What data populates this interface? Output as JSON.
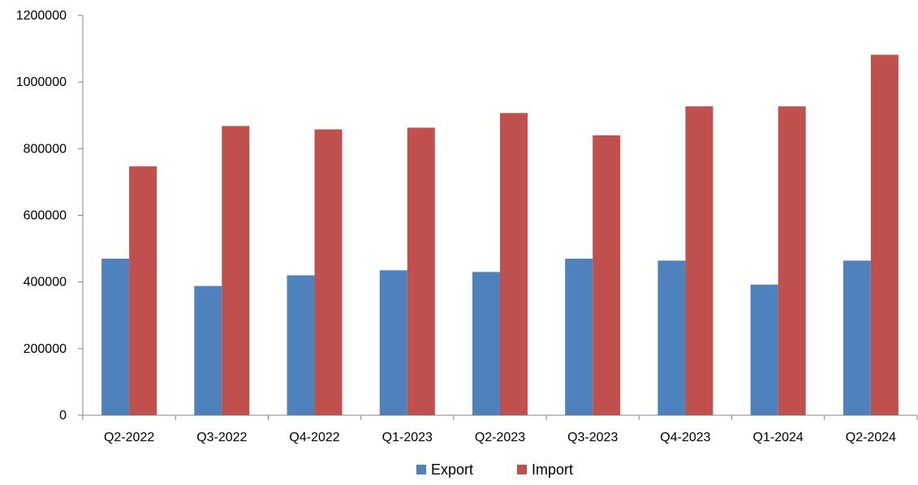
{
  "chart_data": {
    "type": "bar",
    "title": "",
    "xlabel": "",
    "ylabel": "",
    "categories": [
      "Q2-2022",
      "Q3-2022",
      "Q4-2022",
      "Q1-2023",
      "Q2-2023",
      "Q3-2023",
      "Q4-2023",
      "Q1-2024",
      "Q2-2024"
    ],
    "series": [
      {
        "name": "Export",
        "color": "#4F81BD",
        "values": [
          470000,
          388000,
          420000,
          435000,
          430000,
          470000,
          464000,
          392000,
          464000
        ]
      },
      {
        "name": "Import",
        "color": "#C0504D",
        "values": [
          747000,
          868000,
          858000,
          863000,
          907000,
          840000,
          927000,
          927000,
          1082000
        ]
      }
    ],
    "ylim": [
      0,
      1200000
    ],
    "yticks": [
      "0",
      "200000",
      "400000",
      "600000",
      "800000",
      "1000000",
      "1200000"
    ],
    "grid": false,
    "legend_position": "bottom"
  }
}
